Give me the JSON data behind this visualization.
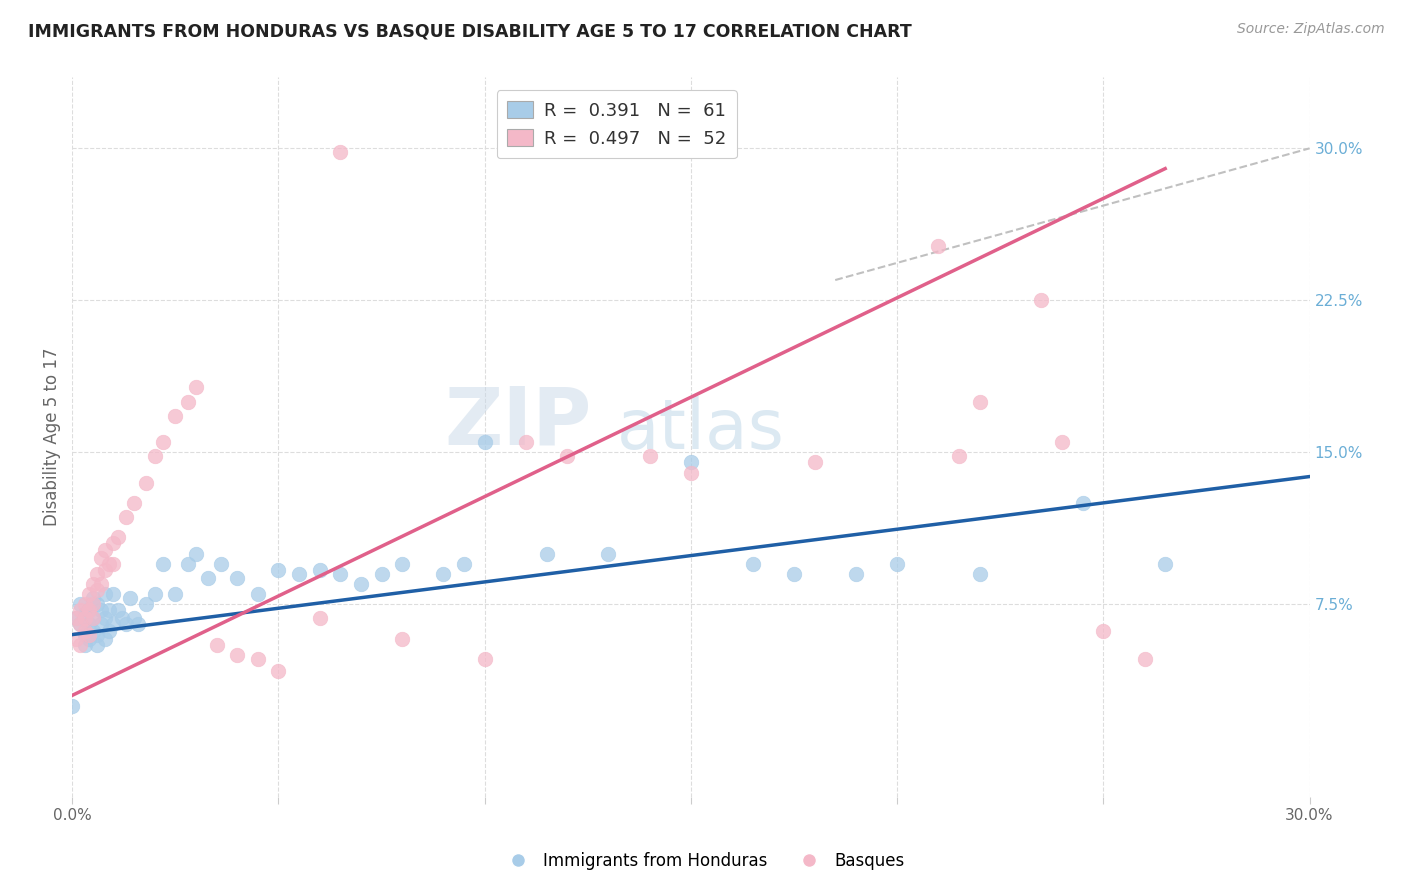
{
  "title": "IMMIGRANTS FROM HONDURAS VS BASQUE DISABILITY AGE 5 TO 17 CORRELATION CHART",
  "source": "Source: ZipAtlas.com",
  "ylabel": "Disability Age 5 to 17",
  "xlim": [
    0.0,
    0.3
  ],
  "ylim": [
    -0.02,
    0.335
  ],
  "y_ticks_right": [
    0.075,
    0.15,
    0.225,
    0.3
  ],
  "y_tick_labels_right": [
    "7.5%",
    "15.0%",
    "22.5%",
    "30.0%"
  ],
  "blue_color": "#a8cce8",
  "pink_color": "#f4b8c8",
  "blue_line_color": "#1f5fa6",
  "pink_line_color": "#e0608a",
  "dashed_line_color": "#c0c0c0",
  "background_color": "#ffffff",
  "watermark_zip": "ZIP",
  "watermark_atlas": "atlas",
  "blue_line_x": [
    0.0,
    0.3
  ],
  "blue_line_y": [
    0.06,
    0.138
  ],
  "pink_line_x": [
    0.0,
    0.265
  ],
  "pink_line_y": [
    0.03,
    0.29
  ],
  "dashed_line_x": [
    0.185,
    0.3
  ],
  "dashed_line_y": [
    0.235,
    0.3
  ],
  "blue_scatter_x": [
    0.001,
    0.002,
    0.002,
    0.003,
    0.003,
    0.003,
    0.004,
    0.004,
    0.004,
    0.005,
    0.005,
    0.005,
    0.006,
    0.006,
    0.006,
    0.007,
    0.007,
    0.008,
    0.008,
    0.008,
    0.009,
    0.009,
    0.01,
    0.01,
    0.011,
    0.012,
    0.013,
    0.014,
    0.015,
    0.016,
    0.018,
    0.02,
    0.022,
    0.025,
    0.028,
    0.03,
    0.033,
    0.036,
    0.04,
    0.045,
    0.05,
    0.055,
    0.06,
    0.065,
    0.07,
    0.075,
    0.08,
    0.09,
    0.095,
    0.1,
    0.115,
    0.13,
    0.15,
    0.165,
    0.175,
    0.19,
    0.2,
    0.22,
    0.245,
    0.265,
    0.0
  ],
  "blue_scatter_y": [
    0.068,
    0.075,
    0.065,
    0.07,
    0.06,
    0.055,
    0.072,
    0.065,
    0.058,
    0.078,
    0.068,
    0.062,
    0.075,
    0.06,
    0.055,
    0.072,
    0.065,
    0.08,
    0.068,
    0.058,
    0.072,
    0.062,
    0.08,
    0.065,
    0.072,
    0.068,
    0.065,
    0.078,
    0.068,
    0.065,
    0.075,
    0.08,
    0.095,
    0.08,
    0.095,
    0.1,
    0.088,
    0.095,
    0.088,
    0.08,
    0.092,
    0.09,
    0.092,
    0.09,
    0.085,
    0.09,
    0.095,
    0.09,
    0.095,
    0.155,
    0.1,
    0.1,
    0.145,
    0.095,
    0.09,
    0.09,
    0.095,
    0.09,
    0.125,
    0.095,
    0.025
  ],
  "pink_scatter_x": [
    0.001,
    0.001,
    0.002,
    0.002,
    0.002,
    0.003,
    0.003,
    0.003,
    0.004,
    0.004,
    0.004,
    0.005,
    0.005,
    0.005,
    0.006,
    0.006,
    0.007,
    0.007,
    0.008,
    0.008,
    0.009,
    0.01,
    0.01,
    0.011,
    0.013,
    0.015,
    0.018,
    0.02,
    0.022,
    0.025,
    0.028,
    0.03,
    0.035,
    0.04,
    0.045,
    0.05,
    0.06,
    0.065,
    0.08,
    0.1,
    0.11,
    0.12,
    0.14,
    0.15,
    0.18,
    0.21,
    0.215,
    0.22,
    0.235,
    0.24,
    0.25,
    0.26
  ],
  "pink_scatter_y": [
    0.068,
    0.058,
    0.072,
    0.065,
    0.055,
    0.075,
    0.068,
    0.062,
    0.08,
    0.072,
    0.06,
    0.085,
    0.075,
    0.068,
    0.09,
    0.082,
    0.098,
    0.085,
    0.102,
    0.092,
    0.095,
    0.105,
    0.095,
    0.108,
    0.118,
    0.125,
    0.135,
    0.148,
    0.155,
    0.168,
    0.175,
    0.182,
    0.055,
    0.05,
    0.048,
    0.042,
    0.068,
    0.298,
    0.058,
    0.048,
    0.155,
    0.148,
    0.148,
    0.14,
    0.145,
    0.252,
    0.148,
    0.175,
    0.225,
    0.155,
    0.062,
    0.048
  ]
}
